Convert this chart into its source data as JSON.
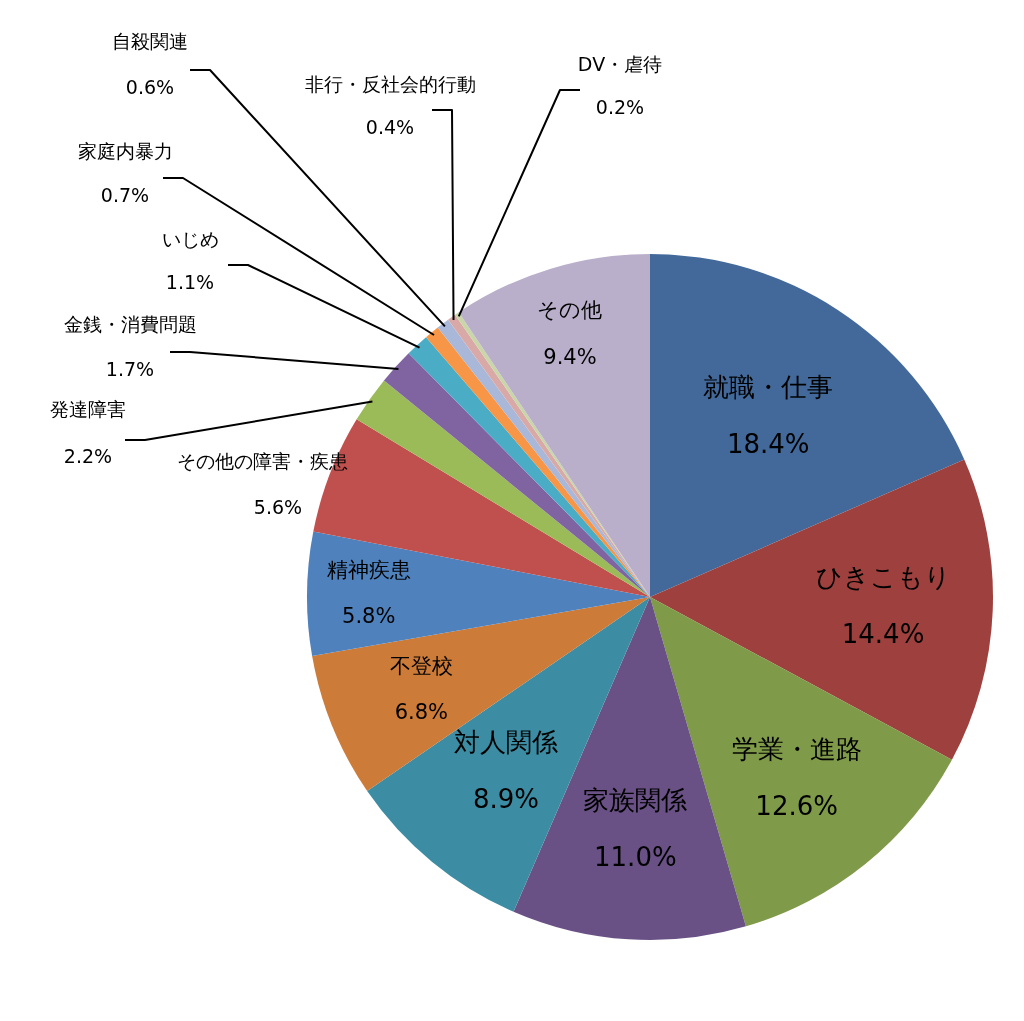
{
  "chart_data": {
    "type": "pie",
    "categories": [
      "就職・仕事",
      "ひきこもり",
      "学業・進路",
      "家族関係",
      "対人関係",
      "不登校",
      "精神疾患",
      "その他の障害・疾患",
      "発達障害",
      "金銭・消費問題",
      "いじめ",
      "家庭内暴力",
      "自殺関連",
      "非行・反社会的行動",
      "DV・虐待",
      "その他"
    ],
    "values": [
      18.4,
      14.4,
      12.6,
      11.0,
      8.9,
      6.8,
      5.8,
      5.6,
      2.2,
      1.7,
      1.1,
      0.7,
      0.6,
      0.4,
      0.2,
      9.4
    ],
    "value_labels": [
      "18.4%",
      "14.4%",
      "12.6%",
      "11.0%",
      "8.9%",
      "6.8%",
      "5.8%",
      "5.6%",
      "2.2%",
      "1.7%",
      "1.1%",
      "0.7%",
      "0.6%",
      "0.4%",
      "0.2%",
      "9.4%"
    ],
    "colors": [
      "#42699a",
      "#9e413e",
      "#7f9a48",
      "#695185",
      "#3c8da3",
      "#cc7b38",
      "#4f81bd",
      "#c0504d",
      "#9bbb59",
      "#8064a2",
      "#4bacc6",
      "#f79646",
      "#a9b8d9",
      "#d9a9a8",
      "#c9d6a8",
      "#b9afca"
    ],
    "legend": false
  }
}
